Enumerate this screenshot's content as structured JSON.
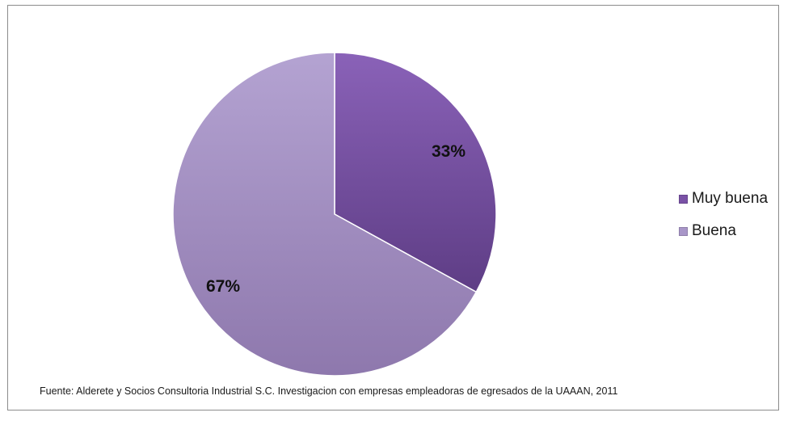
{
  "chart_data": {
    "type": "pie",
    "categories": [
      "Muy buena",
      "Buena"
    ],
    "values": [
      33,
      67
    ],
    "value_labels": [
      "33%",
      "67%"
    ],
    "colors": [
      "#7a52a6",
      "#a896c8"
    ],
    "legend_position": "right",
    "source": "Fuente: Alderete y Socios Consultoria Industrial S.C. Investigacion con empresas empleadoras de  egresados de la UAAAN,  2011"
  }
}
